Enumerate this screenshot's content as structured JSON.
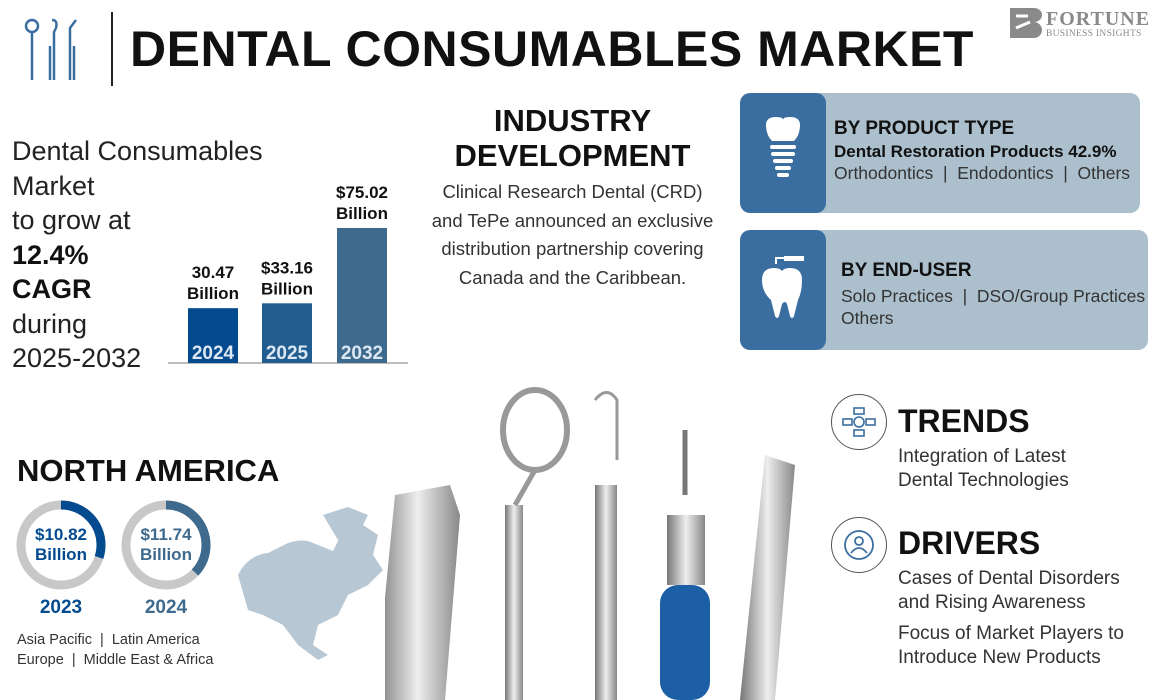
{
  "header": {
    "title": "DENTAL CONSUMABLES MARKET",
    "icon": "dental-tools-icon"
  },
  "logo": {
    "line1": "FORTUNE",
    "line2": "BUSINESS INSIGHTS"
  },
  "summary": {
    "line1": "Dental Consumables",
    "line2": "Market",
    "line3": "to grow at",
    "cagr": "12.4%",
    "cagr_label": "CAGR",
    "line4": "during",
    "period": "2025-2032"
  },
  "chart_data": {
    "type": "bar",
    "categories": [
      "2024",
      "2025",
      "2032"
    ],
    "values": [
      30.47,
      33.16,
      75.02
    ],
    "data_labels": [
      [
        "30.47",
        "Billion"
      ],
      [
        "$33.16",
        "Billion"
      ],
      [
        "$75.02",
        "Billion"
      ]
    ],
    "colors": [
      "#034a8f",
      "#215d8f",
      "#3e6a8d"
    ],
    "unit": "Billion USD",
    "grid": false
  },
  "industry": {
    "title_line1": "INDUSTRY",
    "title_line2": "DEVELOPMENT",
    "text": "Clinical Research Dental (CRD) and TePe announced an exclusive distribution partnership covering Canada and the Caribbean."
  },
  "product_type": {
    "heading": "BY PRODUCT TYPE",
    "highlight": "Dental Restoration Products 42.9%",
    "others": "Orthodontics  |  Endodontics  |  Others",
    "icon": "dental-implant-icon"
  },
  "end_user": {
    "heading": "BY END-USER",
    "line1": "Solo Practices  |  DSO/Group Practices",
    "line2": "Others",
    "icon": "tooth-drill-icon"
  },
  "trends": {
    "heading": "TRENDS",
    "line1": "Integration of Latest",
    "line2": "Dental Technologies",
    "icon": "network-icon"
  },
  "drivers": {
    "heading": "DRIVERS",
    "line1": "Cases of Dental Disorders",
    "line2": "and Rising Awareness",
    "line3": "Focus of Market Players to",
    "line4": "Introduce New Products",
    "icon": "person-target-icon"
  },
  "north_america": {
    "heading": "NORTH AMERICA",
    "donuts": [
      {
        "value": "$10.82",
        "unit": "Billion",
        "year": "2023",
        "fill": 0.3,
        "color": "#034a8f"
      },
      {
        "value": "$11.74",
        "unit": "Billion",
        "year": "2024",
        "fill": 0.37,
        "color": "#3e6a8d"
      }
    ],
    "regions_line1": "Asia Pacific  |  Latin America",
    "regions_line2": "Europe  |  Middle East & Africa"
  }
}
